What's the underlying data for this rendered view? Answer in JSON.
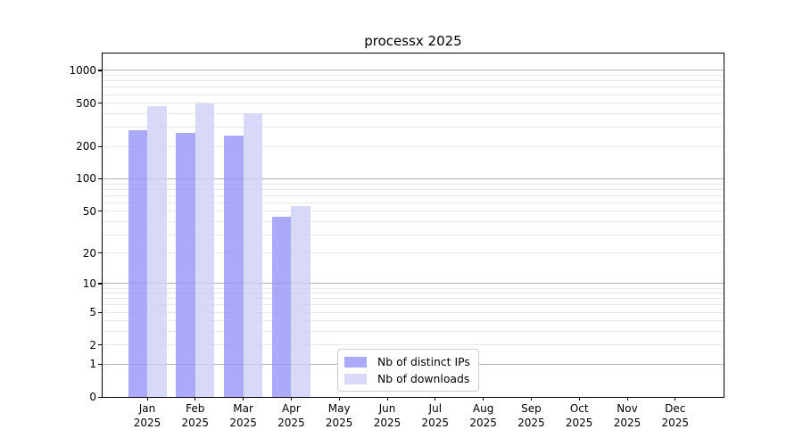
{
  "chart_data": {
    "type": "bar",
    "title": "processx 2025",
    "year_label": "2025",
    "categories": [
      "Jan",
      "Feb",
      "Mar",
      "Apr",
      "May",
      "Jun",
      "Jul",
      "Aug",
      "Sep",
      "Oct",
      "Nov",
      "Dec"
    ],
    "series": [
      {
        "name": "Nb of distinct IPs",
        "color": "rgba(149,149,246,0.8)",
        "values": [
          280,
          268,
          250,
          44,
          0,
          0,
          0,
          0,
          0,
          0,
          0,
          0
        ]
      },
      {
        "name": "Nb of downloads",
        "color": "rgba(206,206,248,0.8)",
        "values": [
          465,
          495,
          400,
          56,
          0,
          0,
          0,
          0,
          0,
          0,
          0,
          0
        ]
      }
    ],
    "yscale": "log1p",
    "yticks": [
      0,
      1,
      2,
      5,
      10,
      20,
      50,
      100,
      200,
      500,
      1000
    ],
    "ylim_top_exp": 3.156,
    "grid": {
      "major_values": [
        1,
        10,
        100,
        1000
      ],
      "major_color": "#b0b0b0",
      "minor_color": "#e8e8e8"
    },
    "legend_position": "lower-center",
    "xlabel": "",
    "ylabel": ""
  }
}
